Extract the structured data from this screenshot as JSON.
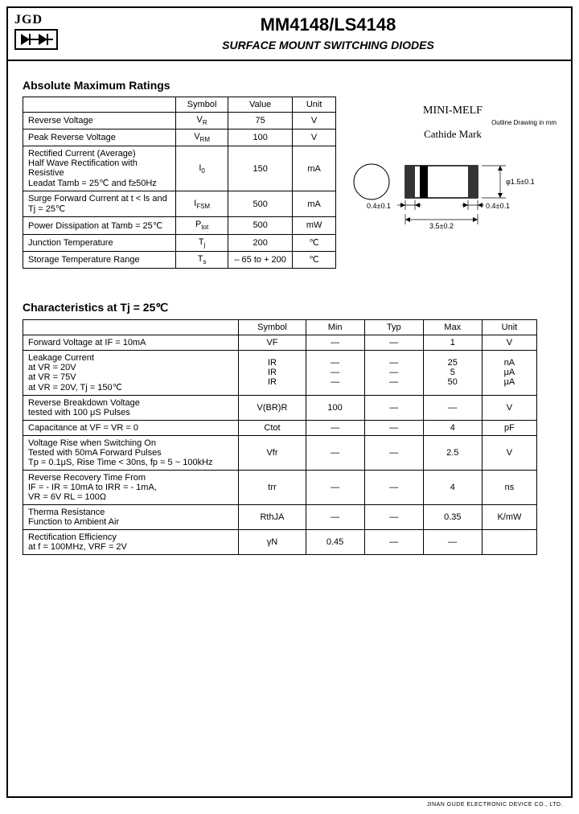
{
  "header": {
    "logo_text": "JGD",
    "part_number": "MM4148/LS4148",
    "subtitle": "SURFACE MOUNT SWITCHING DIODES"
  },
  "section1": {
    "title": "Absolute Maximum Ratings",
    "headers": {
      "param": "",
      "symbol": "Symbol",
      "value": "Value",
      "unit": "Unit"
    },
    "rows": [
      {
        "param": "Reverse Voltage",
        "symbol": "V",
        "sub": "R",
        "value": "75",
        "unit": "V"
      },
      {
        "param": "Peak Reverse Voltage",
        "symbol": "V",
        "sub": "RM",
        "value": "100",
        "unit": "V"
      },
      {
        "param": "Rectified Current (Average)\nHalf Wave Rectification with Resistive\nLeadat Tamb = 25℃ and f≥50Hz",
        "symbol": "I",
        "sub": "0",
        "value": "150",
        "unit": "mA"
      },
      {
        "param": "Surge Forward Current at t < ls and Tj = 25℃",
        "symbol": "I",
        "sub": "FSM",
        "value": "500",
        "unit": "mA"
      },
      {
        "param": "Power Dissipation at Tamb = 25℃",
        "symbol": "P",
        "sub": "tot",
        "value": "500",
        "unit": "mW"
      },
      {
        "param": "Junction Temperature",
        "symbol": "T",
        "sub": "j",
        "value": "200",
        "unit": "℃"
      },
      {
        "param": "Storage Temperature Range",
        "symbol": "T",
        "sub": "s",
        "value": "– 65 to + 200",
        "unit": "℃"
      }
    ]
  },
  "package": {
    "title": "MINI-MELF",
    "subtitle": "Outline Drawing in mm",
    "cathode": "Cathide Mark",
    "dim_left": "0.4±0.1",
    "dim_right": "0.4±0.1",
    "dim_height": "φ1.5±0.1",
    "dim_width": "3.5±0.2"
  },
  "section2": {
    "title": "Characteristics at Tj = 25℃",
    "headers": {
      "param": "",
      "symbol": "Symbol",
      "min": "Min",
      "typ": "Typ",
      "max": "Max",
      "unit": "Unit"
    },
    "rows": [
      {
        "param": "Forward Voltage at IF = 10mA",
        "symbol": "VF",
        "min": "—",
        "typ": "—",
        "max": "1",
        "unit": "V"
      },
      {
        "param": "Leakage Current\nat VR = 20V\nat VR = 75V\nat VR = 20V, Tj = 150℃",
        "symbol": "IR\nIR\nIR",
        "min": "—\n—\n—",
        "typ": "—\n—\n—",
        "max": "25\n5\n50",
        "unit": "nA\nμA\nμA"
      },
      {
        "param": "Reverse Breakdown Voltage\ntested with 100 μS Pulses",
        "symbol": "V(BR)R",
        "min": "100",
        "typ": "—",
        "max": "—",
        "unit": "V"
      },
      {
        "param": "Capacitance at VF = VR = 0",
        "symbol": "Ctot",
        "min": "—",
        "typ": "—",
        "max": "4",
        "unit": "pF"
      },
      {
        "param": "Voltage Rise when Switching On\nTested with 50mA Forward Pulses\nTp = 0.1μS, Rise Time < 30ns, fp = 5 ~ 100kHz",
        "symbol": "Vfr",
        "min": "—",
        "typ": "—",
        "max": "2.5",
        "unit": "V"
      },
      {
        "param": "Reverse Recovery Time From\nIF = - IR = 10mA to IRR = - 1mA,\nVR = 6V RL = 100Ω",
        "symbol": "trr",
        "min": "—",
        "typ": "—",
        "max": "4",
        "unit": "ns"
      },
      {
        "param": "Therma Resistance\nFunction to Ambient Air",
        "symbol": "RthJA",
        "min": "—",
        "typ": "—",
        "max": "0.35",
        "unit": "K/mW"
      },
      {
        "param": "Rectification Efficiency\nat f = 100MHz, VRF = 2V",
        "symbol": "γN",
        "min": "0.45",
        "typ": "—",
        "max": "—",
        "unit": ""
      }
    ]
  },
  "footer": "JINAN GUDE ELECTRONIC DEVICE CO., LTD."
}
